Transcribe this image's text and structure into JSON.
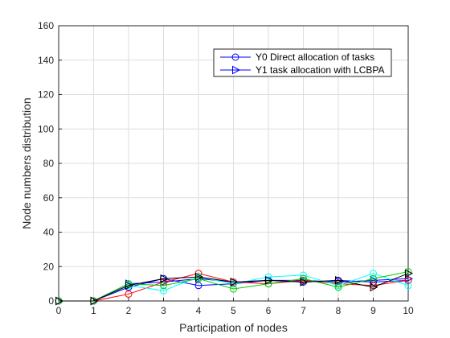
{
  "chart_data": {
    "type": "line",
    "title": "",
    "xlabel": "Participation of nodes",
    "ylabel": "Node numbers distribution",
    "xlim": [
      0,
      10
    ],
    "ylim": [
      0,
      160
    ],
    "xticks": [
      "0",
      "1",
      "2",
      "3",
      "4",
      "5",
      "6",
      "7",
      "8",
      "9",
      "10"
    ],
    "yticks": [
      "0",
      "20",
      "40",
      "60",
      "80",
      "100",
      "120",
      "140",
      "160"
    ],
    "grid": true,
    "legend_position": "top-right",
    "x": [
      0,
      1,
      2,
      3,
      4,
      5,
      6,
      7,
      8,
      9,
      10
    ],
    "series": [
      {
        "name": "Y0 Direct allocation of tasks",
        "color": "#0000ff",
        "marker": "circle",
        "values": [
          0,
          0,
          8,
          13,
          9,
          10,
          12,
          11,
          12,
          11,
          12
        ]
      },
      {
        "name": "Y1 task allocation with LCBPA",
        "color": "#0000ff",
        "marker": "triangle-right",
        "values": [
          0,
          0,
          10,
          11,
          13,
          11,
          12,
          12,
          11,
          12,
          13
        ]
      },
      {
        "color": "#ff0000",
        "marker": "circle",
        "values": [
          0,
          0,
          4,
          11,
          16,
          11,
          10,
          12,
          10,
          9,
          12
        ]
      },
      {
        "color": "#00ffff",
        "marker": "circle",
        "values": [
          0,
          0,
          9,
          6,
          14,
          10,
          14,
          15,
          9,
          16,
          9
        ]
      },
      {
        "color": "#00cc00",
        "marker": "circle",
        "values": [
          0,
          0,
          10,
          9,
          13,
          7,
          10,
          13,
          8,
          13,
          17
        ]
      },
      {
        "color": "#000000",
        "marker": "triangle-right",
        "values": [
          0,
          0,
          9,
          13,
          14,
          11,
          12,
          11,
          12,
          8,
          16
        ]
      }
    ]
  }
}
